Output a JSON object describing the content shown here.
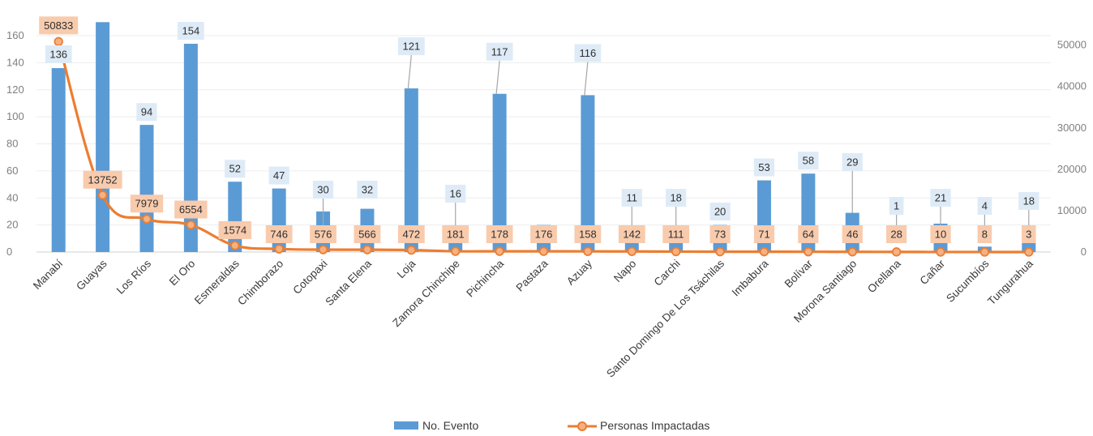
{
  "chart_data": {
    "type": "bar",
    "categories": [
      "Manabí",
      "Guayas",
      "Los Ríos",
      "El Oro",
      "Esmeraldas",
      "Chimborazo",
      "Cotopaxi",
      "Santa Elena",
      "Loja",
      "Zamora Chinchipe",
      "Pichincha",
      "Pastaza",
      "Azuay",
      "Napo",
      "Carchi",
      "Santo Domingo De Los Tsáchilas",
      "Imbabura",
      "Bolívar",
      "Morona Santiago",
      "Orellana",
      "Cañar",
      "Sucumbíos",
      "Tungurahua"
    ],
    "series": [
      {
        "name": "No. Evento",
        "type": "bar",
        "axis": "left",
        "color": "#5b9bd5",
        "values": [
          136,
          170,
          94,
          154,
          52,
          47,
          30,
          32,
          121,
          16,
          117,
          20,
          116,
          11,
          18,
          20,
          53,
          58,
          29,
          1,
          21,
          4,
          18
        ],
        "labels": [
          "136",
          "",
          "94",
          "154",
          "52",
          "47",
          "30",
          "32",
          "121",
          "16",
          "117",
          "",
          "116",
          "11",
          "18",
          "20",
          "53",
          "58",
          "29",
          "1",
          "21",
          "4",
          "18"
        ]
      },
      {
        "name": "Personas Impactadas",
        "type": "line",
        "axis": "right",
        "color": "#ed7d31",
        "values": [
          50833,
          13752,
          7979,
          6554,
          1574,
          746,
          576,
          566,
          472,
          181,
          178,
          176,
          158,
          142,
          111,
          73,
          71,
          64,
          46,
          28,
          10,
          8,
          3
        ],
        "labels": [
          "50833",
          "13752",
          "7979",
          "6554",
          "1574",
          "746",
          "576",
          "566",
          "472",
          "181",
          "178",
          "176",
          "158",
          "142",
          "111",
          "73",
          "71",
          "64",
          "46",
          "28",
          "10",
          "8",
          "3"
        ]
      }
    ],
    "y_left": {
      "min": 0,
      "max": 160,
      "ticks": [
        "0",
        "20",
        "40",
        "60",
        "80",
        "100",
        "120",
        "140",
        "160"
      ]
    },
    "y_right": {
      "min": 0,
      "max": 50000,
      "ticks": [
        "0",
        "10000",
        "20000",
        "30000",
        "40000",
        "50000"
      ]
    },
    "legend": {
      "position": "bottom",
      "entries": [
        "No. Evento",
        "Personas Impactadas"
      ]
    },
    "grid": true,
    "title": "",
    "xlabel": "",
    "ylabel": ""
  }
}
